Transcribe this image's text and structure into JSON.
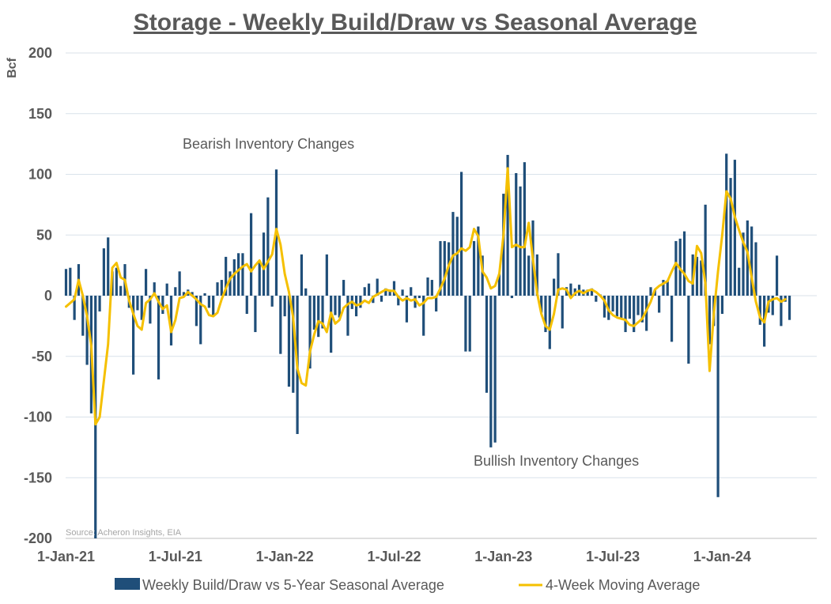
{
  "chart_data": {
    "type": "bar+line",
    "title": "Storage - Weekly Build/Draw vs Seasonal Average",
    "ylabel": "Bcf",
    "xlabel": "",
    "ylim": [
      -200,
      200
    ],
    "yticks": [
      200,
      150,
      100,
      50,
      0,
      -50,
      -100,
      -150,
      -200
    ],
    "ytick_labels": [
      "200",
      "150",
      "100",
      "50",
      "0",
      "-50",
      "-100",
      "-150",
      "-200"
    ],
    "x_tick_labels": [
      "1-Jan-21",
      "1-Jul-21",
      "1-Jan-22",
      "1-Jul-22",
      "1-Jan-23",
      "1-Jul-23",
      "1-Jan-24"
    ],
    "x_tick_weeks": [
      0,
      26,
      52,
      78,
      104,
      130,
      156
    ],
    "week_start": "1-Jan-21",
    "grid": true,
    "legend_position": "bottom",
    "annotations": [
      "Bearish Inventory Changes",
      "Bullish Inventory Changes"
    ],
    "source": "Source: Acheron Insights, EIA",
    "series": [
      {
        "name": "Weekly Build/Draw vs 5-Year Seasonal Average",
        "type": "bar",
        "color": "#1f4e79",
        "values": [
          22,
          23,
          -20,
          26,
          -33,
          -57,
          -97,
          -200,
          -13,
          39,
          48,
          20,
          23,
          8,
          26,
          -10,
          -65,
          -12,
          -20,
          22,
          -23,
          11,
          -69,
          -15,
          10,
          -41,
          7,
          20,
          3,
          5,
          3,
          -25,
          -40,
          2,
          -10,
          -17,
          11,
          13,
          32,
          20,
          30,
          35,
          35,
          -15,
          68,
          -30,
          28,
          52,
          81,
          -9,
          104,
          -48,
          -17,
          -75,
          -80,
          -114,
          34,
          6,
          -60,
          -28,
          -34,
          -27,
          34,
          -47,
          -16,
          -18,
          13,
          -33,
          -11,
          -17,
          -10,
          7,
          10,
          -6,
          14,
          -5,
          6,
          5,
          12,
          -8,
          5,
          -22,
          7,
          -10,
          -2,
          -33,
          15,
          13,
          -13,
          45,
          45,
          44,
          69,
          65,
          102,
          -46,
          -46,
          45,
          57,
          33,
          -80,
          -125,
          -121,
          18,
          84,
          116,
          -2,
          101,
          90,
          110,
          33,
          62,
          34,
          -14,
          -30,
          -44,
          14,
          35,
          -27,
          7,
          10,
          6,
          9,
          5,
          5,
          6,
          -5,
          1,
          -18,
          -20,
          -13,
          -17,
          -19,
          -30,
          -19,
          -30,
          -16,
          -22,
          -29,
          7,
          5,
          -14,
          13,
          12,
          -38,
          45,
          47,
          53,
          -56,
          34,
          32,
          29,
          75,
          -40,
          -25,
          -166,
          -15,
          117,
          97,
          112,
          23,
          52,
          62,
          57,
          44,
          -24,
          -42,
          -14,
          -16,
          33,
          -25,
          -5,
          -20
        ]
      },
      {
        "name": "4-Week Moving Average",
        "type": "line",
        "color": "#f5c000",
        "values": [
          -9,
          -6,
          -3,
          13,
          0,
          -17,
          -41,
          -106,
          -100,
          -70,
          -40,
          23,
          27,
          15,
          13,
          -4,
          -15,
          -25,
          -28,
          -6,
          -3,
          2,
          -5,
          -11,
          -8,
          -30,
          -20,
          -2,
          -1,
          3,
          0,
          -3,
          -7,
          -9,
          -16,
          -17,
          -14,
          -3,
          6,
          14,
          18,
          21,
          24,
          26,
          20,
          25,
          29,
          22,
          28,
          34,
          55,
          42,
          18,
          3,
          -18,
          -60,
          -72,
          -74,
          -46,
          -32,
          -21,
          -23,
          -30,
          -14,
          -23,
          -20,
          -10,
          -7,
          -5,
          -8,
          -7,
          -4,
          -6,
          -1,
          1,
          3,
          5,
          4,
          4,
          -1,
          -4,
          -2,
          -4,
          -3,
          -8,
          -6,
          -2,
          -2,
          -1,
          6,
          14,
          25,
          33,
          35,
          39,
          37,
          40,
          55,
          49,
          20,
          15,
          6,
          8,
          18,
          50,
          105,
          40,
          42,
          40,
          40,
          60,
          30,
          2,
          -15,
          -25,
          -28,
          -15,
          5,
          6,
          5,
          -2,
          2,
          4,
          2,
          4,
          5,
          3,
          0,
          -4,
          -12,
          -16,
          -18,
          -19,
          -20,
          -24,
          -25,
          -22,
          -19,
          -12,
          -5,
          5,
          8,
          10,
          12,
          20,
          27,
          22,
          18,
          12,
          10,
          41,
          35,
          10,
          -62,
          -15,
          20,
          50,
          86,
          80,
          65,
          54,
          44,
          36,
          15,
          -5,
          -18,
          -22,
          -5,
          -3,
          -2,
          -5,
          -3
        ]
      }
    ]
  }
}
